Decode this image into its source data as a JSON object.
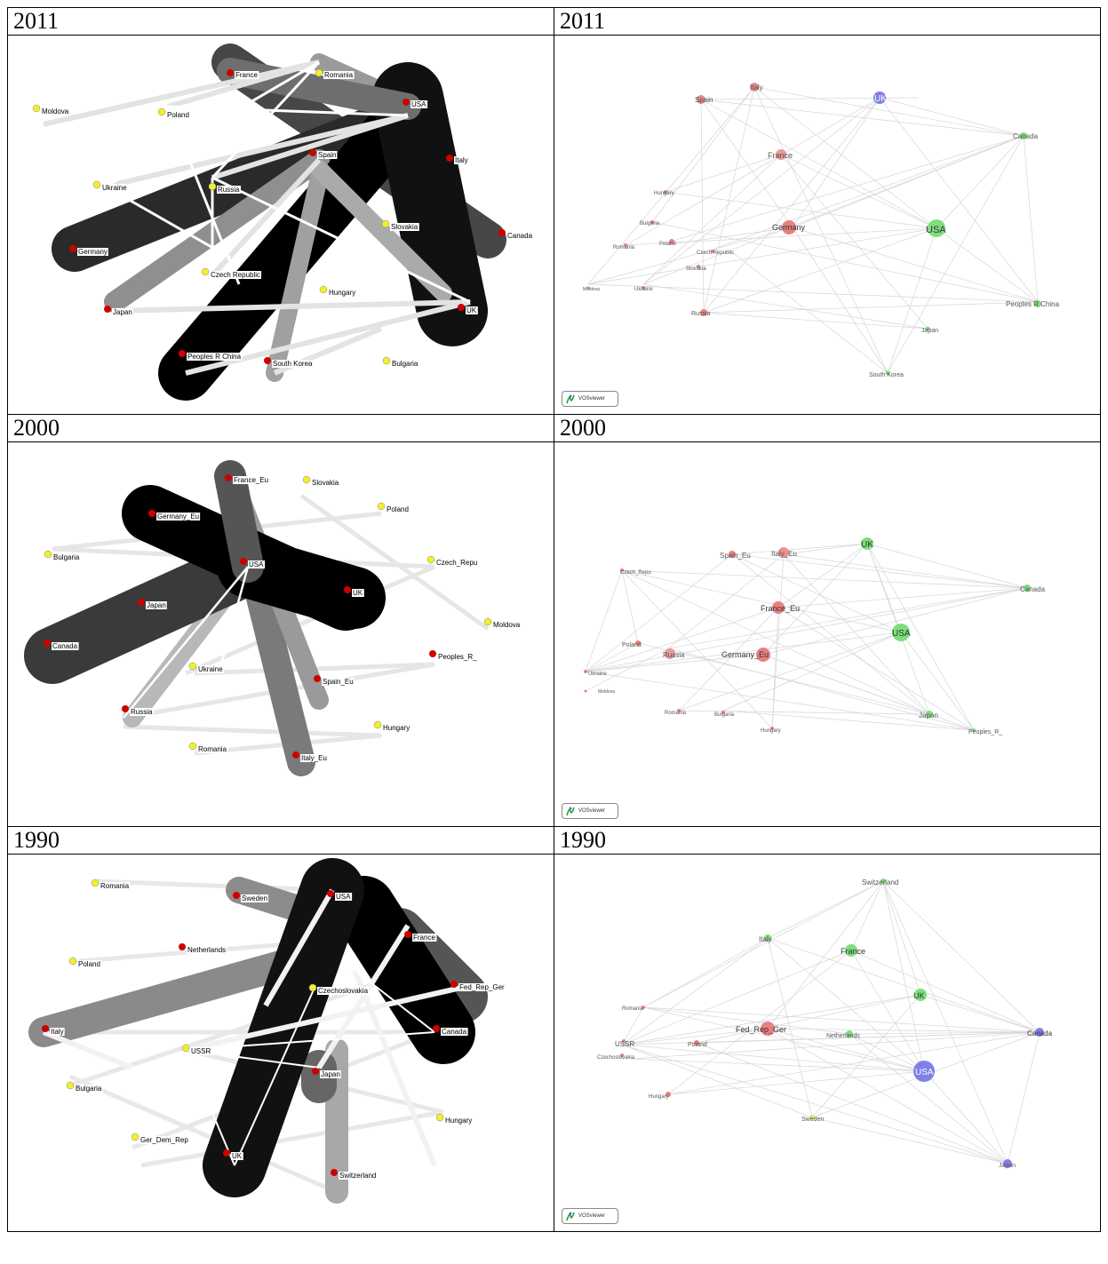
{
  "rows": [
    {
      "left_year": "2011",
      "right_year": "2011",
      "left_network": {
        "nodes": [
          {
            "label": "France",
            "color": "red"
          },
          {
            "label": "Romania",
            "color": "yellow"
          },
          {
            "label": "Moldova",
            "color": "yellow"
          },
          {
            "label": "Poland",
            "color": "yellow"
          },
          {
            "label": "USA",
            "color": "red"
          },
          {
            "label": "Spain",
            "color": "red"
          },
          {
            "label": "Italy",
            "color": "red"
          },
          {
            "label": "Ukraine",
            "color": "yellow"
          },
          {
            "label": "Russia",
            "color": "yellow"
          },
          {
            "label": "Slovakia",
            "color": "yellow"
          },
          {
            "label": "Canada",
            "color": "red"
          },
          {
            "label": "Germany",
            "color": "red"
          },
          {
            "label": "Czech Republic",
            "color": "yellow"
          },
          {
            "label": "Hungary",
            "color": "yellow"
          },
          {
            "label": "Japan",
            "color": "red"
          },
          {
            "label": "UK",
            "color": "red"
          },
          {
            "label": "Peoples R China",
            "color": "red"
          },
          {
            "label": "South Korea",
            "color": "red"
          },
          {
            "label": "Bulgaria",
            "color": "yellow"
          }
        ]
      },
      "right_network": {
        "nodes": [
          {
            "label": "Spain",
            "cluster": "red"
          },
          {
            "label": "Italy",
            "cluster": "red"
          },
          {
            "label": "UK",
            "cluster": "blue"
          },
          {
            "label": "Canada",
            "cluster": "green"
          },
          {
            "label": "France",
            "cluster": "red"
          },
          {
            "label": "Hungary",
            "cluster": "red"
          },
          {
            "label": "Bulgaria",
            "cluster": "red"
          },
          {
            "label": "Germany",
            "cluster": "red"
          },
          {
            "label": "USA",
            "cluster": "green"
          },
          {
            "label": "Romania",
            "cluster": "red"
          },
          {
            "label": "Poland",
            "cluster": "red"
          },
          {
            "label": "Czech Republic",
            "cluster": "red"
          },
          {
            "label": "Slovakia",
            "cluster": "red"
          },
          {
            "label": "Moldova",
            "cluster": "red"
          },
          {
            "label": "Ukraine",
            "cluster": "red"
          },
          {
            "label": "Peoples R China",
            "cluster": "green"
          },
          {
            "label": "Russia",
            "cluster": "red"
          },
          {
            "label": "Japan",
            "cluster": "green"
          },
          {
            "label": "South Korea",
            "cluster": "green"
          }
        ],
        "badge": "VOSviewer"
      }
    },
    {
      "left_year": "2000",
      "right_year": "2000",
      "left_network": {
        "nodes": [
          {
            "label": "France_Eu",
            "color": "red"
          },
          {
            "label": "Slovakia",
            "color": "yellow"
          },
          {
            "label": "Germany_Eu",
            "color": "red"
          },
          {
            "label": "Poland",
            "color": "yellow"
          },
          {
            "label": "Bulgaria",
            "color": "yellow"
          },
          {
            "label": "USA",
            "color": "red"
          },
          {
            "label": "Czech_Repu",
            "color": "yellow"
          },
          {
            "label": "Japan",
            "color": "red"
          },
          {
            "label": "UK",
            "color": "red"
          },
          {
            "label": "Moldova",
            "color": "yellow"
          },
          {
            "label": "Canada",
            "color": "red"
          },
          {
            "label": "Peoples_R_",
            "color": "red"
          },
          {
            "label": "Ukraine",
            "color": "yellow"
          },
          {
            "label": "Spain_Eu",
            "color": "red"
          },
          {
            "label": "Russia",
            "color": "red"
          },
          {
            "label": "Hungary",
            "color": "yellow"
          },
          {
            "label": "Romania",
            "color": "yellow"
          },
          {
            "label": "Italy_Eu",
            "color": "red"
          }
        ]
      },
      "right_network": {
        "nodes": [
          {
            "label": "UK",
            "cluster": "green"
          },
          {
            "label": "Spain_Eu",
            "cluster": "red"
          },
          {
            "label": "Italy_Eu",
            "cluster": "red"
          },
          {
            "label": "Czech_Repu",
            "cluster": "red"
          },
          {
            "label": "Canada",
            "cluster": "green"
          },
          {
            "label": "France_Eu",
            "cluster": "red"
          },
          {
            "label": "USA",
            "cluster": "green"
          },
          {
            "label": "Poland",
            "cluster": "red"
          },
          {
            "label": "Russia",
            "cluster": "red"
          },
          {
            "label": "Germany_Eu",
            "cluster": "red"
          },
          {
            "label": "Ukraine",
            "cluster": "red"
          },
          {
            "label": "Moldova",
            "cluster": "red"
          },
          {
            "label": "Romania",
            "cluster": "red"
          },
          {
            "label": "Bulgaria",
            "cluster": "red"
          },
          {
            "label": "Hungary",
            "cluster": "red"
          },
          {
            "label": "Japan",
            "cluster": "green"
          },
          {
            "label": "Peoples_R_",
            "cluster": "green"
          }
        ],
        "badge": "VOSviewer"
      }
    },
    {
      "left_year": "1990",
      "right_year": "1990",
      "left_network": {
        "nodes": [
          {
            "label": "Romania",
            "color": "yellow"
          },
          {
            "label": "Sweden",
            "color": "red"
          },
          {
            "label": "USA",
            "color": "red"
          },
          {
            "label": "France",
            "color": "red"
          },
          {
            "label": "Netherlands",
            "color": "red"
          },
          {
            "label": "Poland",
            "color": "yellow"
          },
          {
            "label": "Czechoslovakia",
            "color": "yellow"
          },
          {
            "label": "Fed_Rep_Ger",
            "color": "red"
          },
          {
            "label": "Italy",
            "color": "red"
          },
          {
            "label": "Canada",
            "color": "red"
          },
          {
            "label": "USSR",
            "color": "yellow"
          },
          {
            "label": "Japan",
            "color": "red"
          },
          {
            "label": "Bulgaria",
            "color": "yellow"
          },
          {
            "label": "Hungary",
            "color": "yellow"
          },
          {
            "label": "Ger_Dem_Rep",
            "color": "yellow"
          },
          {
            "label": "UK",
            "color": "red"
          },
          {
            "label": "Switzerland",
            "color": "red"
          }
        ]
      },
      "right_network": {
        "nodes": [
          {
            "label": "Switzerland",
            "cluster": "green"
          },
          {
            "label": "Italy",
            "cluster": "green"
          },
          {
            "label": "France",
            "cluster": "green"
          },
          {
            "label": "Romania",
            "cluster": "red"
          },
          {
            "label": "UK",
            "cluster": "green"
          },
          {
            "label": "Fed_Rep_Ger",
            "cluster": "red"
          },
          {
            "label": "USSR",
            "cluster": "red"
          },
          {
            "label": "Poland",
            "cluster": "red"
          },
          {
            "label": "Netherlands",
            "cluster": "green"
          },
          {
            "label": "Canada",
            "cluster": "blue"
          },
          {
            "label": "Czechoslovakia",
            "cluster": "red"
          },
          {
            "label": "USA",
            "cluster": "blue"
          },
          {
            "label": "Hungary",
            "cluster": "red"
          },
          {
            "label": "Sweden",
            "cluster": "yellow"
          },
          {
            "label": "Japan",
            "cluster": "blue"
          }
        ],
        "badge": "VOSviewer"
      }
    }
  ],
  "colors": {
    "red_node": "#d00000",
    "yellow_node": "#f2ef2a",
    "vos_red": "#e88080",
    "vos_green": "#7ede7e",
    "vos_blue": "#8080e8",
    "vos_yellow": "#e8e070",
    "edge_light": "#cfcfcf"
  }
}
